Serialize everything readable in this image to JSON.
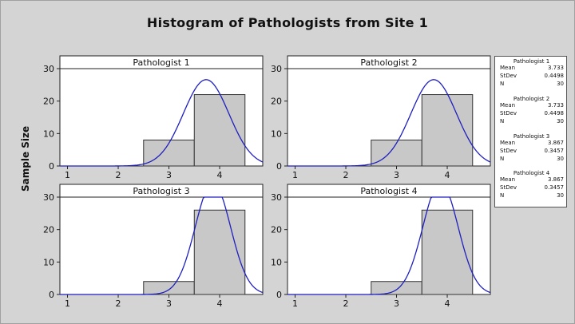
{
  "chart_data": {
    "type": "bar",
    "title": "Histogram of Pathologists from Site 1",
    "ylabel": "Sample Size",
    "xlim": [
      0.85,
      4.85
    ],
    "ylim": [
      0,
      30
    ],
    "x_ticks": [
      1,
      2,
      3,
      4
    ],
    "y_ticks": [
      0,
      10,
      20,
      30
    ],
    "bin_edges": [
      2.5,
      3.5,
      4.5
    ],
    "grid": false,
    "legend_position": "right",
    "bar_color": "#c8c8c8",
    "curve_color": "#1f1fbf",
    "panels": [
      {
        "name": "Pathologist 1",
        "counts": [
          8,
          22
        ],
        "mean": 3.733,
        "stdev": 0.4498,
        "n": 30
      },
      {
        "name": "Pathologist 2",
        "counts": [
          8,
          22
        ],
        "mean": 3.733,
        "stdev": 0.4498,
        "n": 30
      },
      {
        "name": "Pathologist 3",
        "counts": [
          4,
          26
        ],
        "mean": 3.867,
        "stdev": 0.3457,
        "n": 30
      },
      {
        "name": "Pathologist 4",
        "counts": [
          4,
          26
        ],
        "mean": 3.867,
        "stdev": 0.3457,
        "n": 30
      }
    ]
  },
  "legend": {
    "labels": {
      "mean": "Mean",
      "stdev": "StDev",
      "n": "N"
    },
    "entries": [
      {
        "name": "Pathologist 1",
        "mean": "3.733",
        "stdev": "0.4498",
        "n": "30"
      },
      {
        "name": "Pathologist 2",
        "mean": "3.733",
        "stdev": "0.4498",
        "n": "30"
      },
      {
        "name": "Pathologist 3",
        "mean": "3.867",
        "stdev": "0.3457",
        "n": "30"
      },
      {
        "name": "Pathologist 4",
        "mean": "3.867",
        "stdev": "0.3457",
        "n": "30"
      }
    ]
  }
}
